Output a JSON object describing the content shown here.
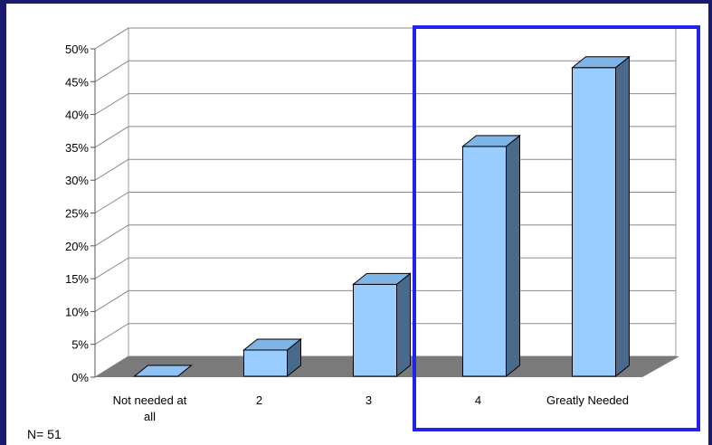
{
  "chart_data": {
    "type": "bar",
    "categories": [
      "Not needed at all",
      "2",
      "3",
      "4",
      "Greatly Needed"
    ],
    "values": [
      0,
      4,
      14,
      35,
      47
    ],
    "ylim": [
      0,
      50
    ],
    "yticks": [
      "0%",
      "5%",
      "10%",
      "15%",
      "20%",
      "25%",
      "30%",
      "35%",
      "40%",
      "45%",
      "50%"
    ],
    "grid": true,
    "bar_color": "#99ccff",
    "highlight_categories": [
      "4",
      "Greatly Needed"
    ],
    "highlight_color": "#2222ee"
  },
  "note": "N= 51",
  "colors": {
    "background": "#1a1a6e",
    "floor": "#7a7a7a"
  }
}
